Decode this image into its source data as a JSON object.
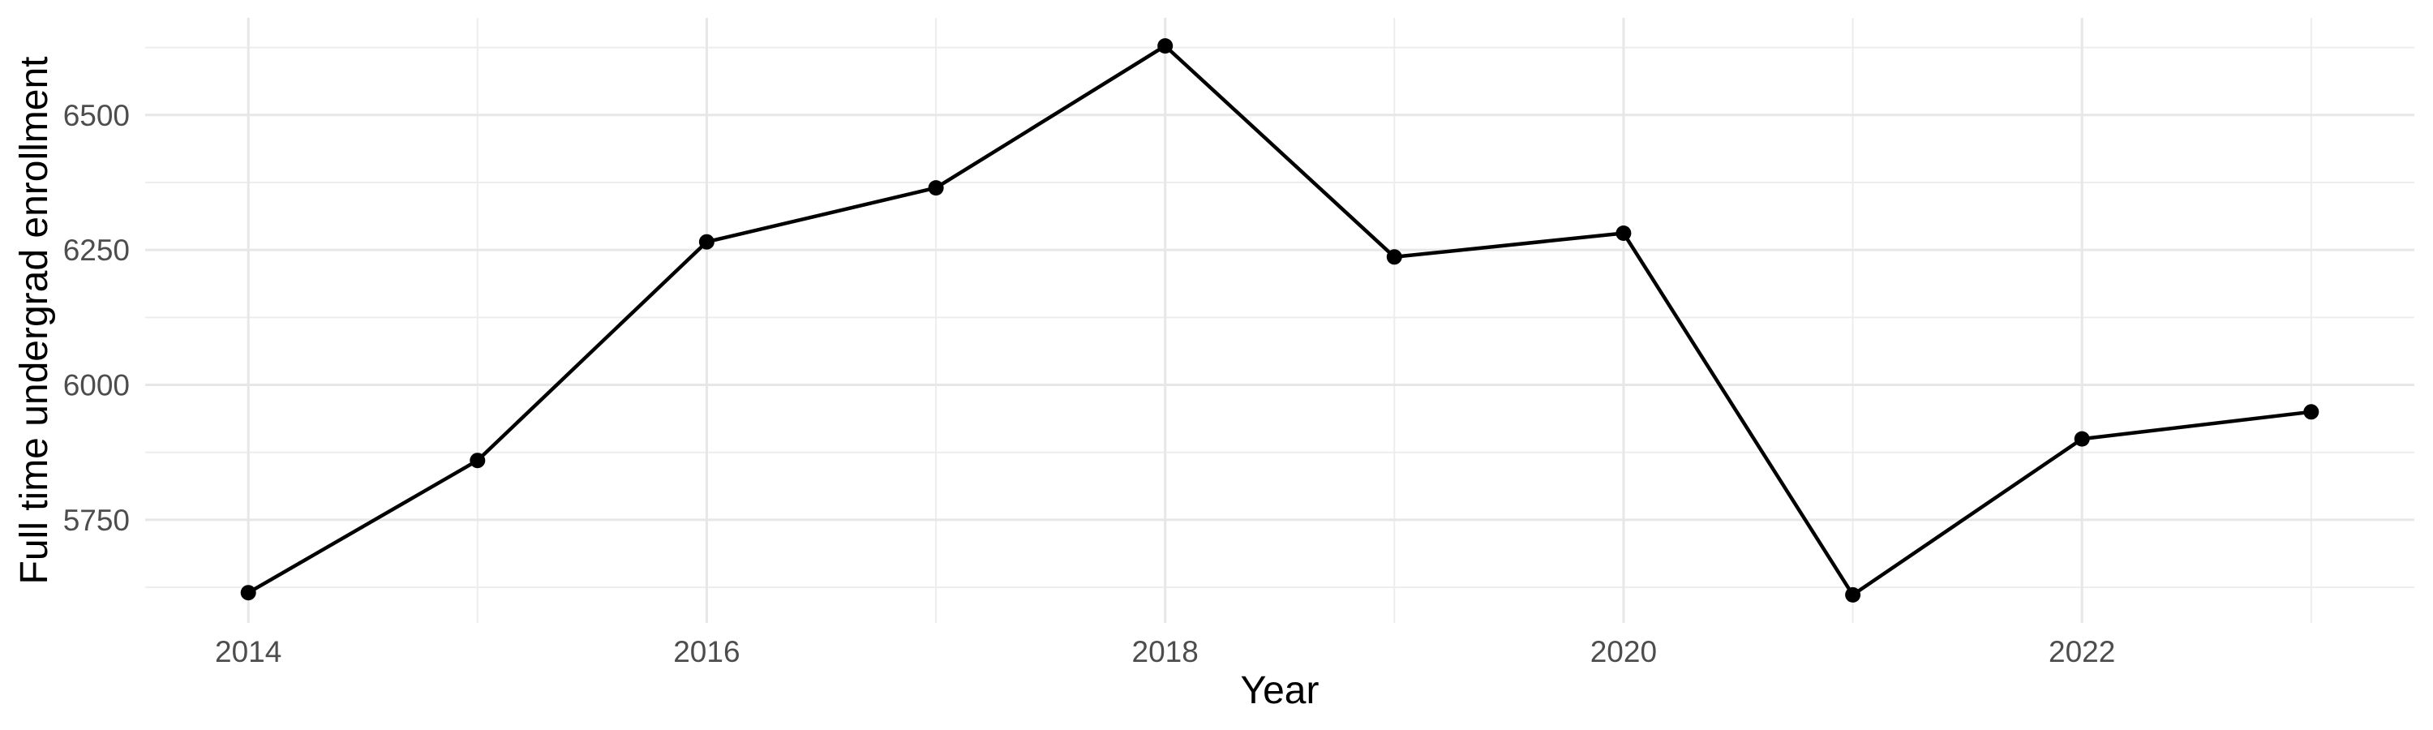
{
  "figure": {
    "background": "#FFFFFF"
  },
  "chart_data": {
    "type": "line",
    "title": "",
    "xlabel": "Year",
    "ylabel": "Full time undergrad enrollment",
    "series": [
      {
        "name": "Full time undergrad enrollment",
        "x": [
          2014,
          2015,
          2016,
          2017,
          2018,
          2019,
          2020,
          2021,
          2022,
          2023
        ],
        "values": [
          5615,
          5860,
          6265,
          6365,
          6628,
          6237,
          6281,
          5611,
          5900,
          5950
        ]
      }
    ],
    "x_ticks": [
      2014,
      2016,
      2018,
      2020,
      2022
    ],
    "y_ticks": [
      6500,
      6250,
      6000,
      5750
    ],
    "x_minor_gridlines": [
      2015,
      2017,
      2019,
      2021,
      2023
    ],
    "y_minor_gridlines": [
      6625,
      6375,
      6125,
      5875,
      5625
    ],
    "xlim": [
      2013.55,
      2023.45
    ],
    "ylim": [
      5559,
      6680
    ],
    "grid": "major+minor",
    "legend_position": "none",
    "line_color": "#000000",
    "point_color": "#000000",
    "grid_major_color": "#E7E7E7",
    "grid_minor_color": "#EDEDED",
    "tick_label_color": "#4D4D4D",
    "axis_title_color": "#000000"
  }
}
